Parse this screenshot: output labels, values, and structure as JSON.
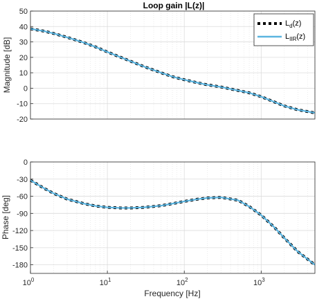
{
  "chart_data": [
    {
      "type": "line",
      "title": "Loop gain |L(z)|",
      "xlabel": "",
      "ylabel": "Magnitude [dB]",
      "xscale": "log",
      "xlim": [
        1,
        5000
      ],
      "ylim": [
        -20,
        50
      ],
      "yticks": [
        "-20",
        "-10",
        "0",
        "10",
        "20",
        "30",
        "40",
        "50"
      ],
      "grid": true,
      "legend_position": "top-right",
      "series": [
        {
          "name": "L_d(z)",
          "legend_main": "L",
          "legend_sub": "d",
          "legend_tail": "(z)",
          "style": "dotted",
          "color": "#000000",
          "x": [
            1,
            1.5,
            2,
            3,
            5,
            7,
            10,
            15,
            20,
            30,
            50,
            70,
            100,
            150,
            200,
            300,
            500,
            700,
            1000,
            1500,
            2000,
            3000,
            5000
          ],
          "y": [
            38.5,
            37,
            35.5,
            33,
            29.5,
            26.8,
            23.5,
            20,
            17.5,
            14,
            10,
            7.5,
            5.5,
            3.5,
            2.2,
            0.8,
            -1.5,
            -3,
            -5.5,
            -9,
            -11.5,
            -14,
            -16
          ]
        },
        {
          "name": "L_IIR(z)",
          "legend_main": "L",
          "legend_sub": "IIR",
          "legend_tail": "(z)",
          "style": "solid",
          "color": "#5ab4e0",
          "x": [
            1,
            1.5,
            2,
            3,
            5,
            7,
            10,
            15,
            20,
            30,
            50,
            70,
            100,
            150,
            200,
            300,
            500,
            700,
            1000,
            1500,
            2000,
            3000,
            5000
          ],
          "y": [
            38.5,
            37,
            35.5,
            33,
            29.5,
            26.8,
            23.5,
            20,
            17.5,
            14,
            10,
            7.5,
            5.5,
            3.5,
            2.2,
            0.8,
            -1.5,
            -3,
            -5.5,
            -9,
            -11.5,
            -14,
            -16
          ]
        }
      ]
    },
    {
      "type": "line",
      "title": "",
      "xlabel": "Frequency [Hz]",
      "ylabel": "Phase [deg]",
      "xscale": "log",
      "xlim": [
        1,
        5000
      ],
      "ylim": [
        -195,
        0
      ],
      "yticks": [
        "-180",
        "-150",
        "-120",
        "-90",
        "-60",
        "-30",
        "0"
      ],
      "xticks": [
        {
          "base": "10",
          "exp": "0"
        },
        {
          "base": "10",
          "exp": "1"
        },
        {
          "base": "10",
          "exp": "2"
        },
        {
          "base": "10",
          "exp": "3"
        }
      ],
      "grid": true,
      "series": [
        {
          "name": "L_d(z)",
          "style": "dotted",
          "color": "#000000",
          "x": [
            1,
            1.5,
            2,
            3,
            5,
            7,
            10,
            15,
            20,
            30,
            50,
            70,
            100,
            150,
            200,
            300,
            500,
            700,
            1000,
            1500,
            2000,
            3000,
            5000
          ],
          "y": [
            -32,
            -46,
            -55,
            -65,
            -73,
            -77,
            -79.5,
            -80.5,
            -80.5,
            -79.5,
            -76.5,
            -73,
            -69,
            -65,
            -63,
            -62,
            -67,
            -78,
            -93,
            -115,
            -133,
            -157,
            -180
          ]
        },
        {
          "name": "L_IIR(z)",
          "style": "solid",
          "color": "#5ab4e0",
          "x": [
            1,
            1.5,
            2,
            3,
            5,
            7,
            10,
            15,
            20,
            30,
            50,
            70,
            100,
            150,
            200,
            300,
            500,
            700,
            1000,
            1500,
            2000,
            3000,
            5000
          ],
          "y": [
            -32,
            -46,
            -55,
            -65,
            -73,
            -77,
            -79.5,
            -80.5,
            -80.5,
            -79.5,
            -76.5,
            -73,
            -69,
            -65,
            -63,
            -62,
            -67,
            -78,
            -93,
            -115,
            -133,
            -157,
            -180
          ]
        }
      ]
    }
  ]
}
